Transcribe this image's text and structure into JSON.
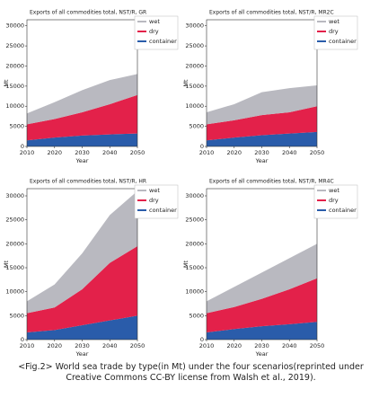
{
  "chart_data": [
    {
      "type": "stacked-area",
      "title": "Exports of all commodities total, NST/R, GR",
      "xlabel": "Year",
      "ylabel": "Mt",
      "x": [
        2010,
        2020,
        2030,
        2040,
        2050
      ],
      "xlim": [
        2010,
        2050
      ],
      "xticks": [
        2010,
        2020,
        2030,
        2040,
        2050
      ],
      "ylim": [
        0,
        31500
      ],
      "yticks": [
        0,
        5000,
        10000,
        15000,
        20000,
        25000,
        30000
      ],
      "legend": "upper right",
      "series": [
        {
          "name": "wet",
          "color": "#b9b9c0",
          "values": [
            2700,
            4200,
            5500,
            6000,
            5200
          ]
        },
        {
          "name": "dry",
          "color": "#e3214a",
          "values": [
            4000,
            4600,
            5800,
            7500,
            9600
          ]
        },
        {
          "name": "container",
          "color": "#2a5caa",
          "values": [
            1500,
            2200,
            2700,
            3000,
            3200
          ]
        }
      ]
    },
    {
      "type": "stacked-area",
      "title": "Exports of all commodities total, NST/R, MR2C",
      "xlabel": "Year",
      "ylabel": "Mt",
      "x": [
        2010,
        2020,
        2030,
        2040,
        2050
      ],
      "xlim": [
        2010,
        2050
      ],
      "xticks": [
        2010,
        2020,
        2030,
        2040,
        2050
      ],
      "ylim": [
        0,
        31500
      ],
      "yticks": [
        0,
        5000,
        10000,
        15000,
        20000,
        25000,
        30000
      ],
      "legend": "upper right",
      "series": [
        {
          "name": "wet",
          "color": "#b9b9c0",
          "values": [
            3000,
            4000,
            5700,
            6000,
            5200
          ]
        },
        {
          "name": "dry",
          "color": "#e3214a",
          "values": [
            4000,
            4300,
            5000,
            5300,
            6400
          ]
        },
        {
          "name": "container",
          "color": "#2a5caa",
          "values": [
            1500,
            2200,
            2800,
            3200,
            3600
          ]
        }
      ]
    },
    {
      "type": "stacked-area",
      "title": "Exports of all commodities total, NST/R, HR",
      "xlabel": "Year",
      "ylabel": "Mt",
      "x": [
        2010,
        2020,
        2030,
        2040,
        2050
      ],
      "xlim": [
        2010,
        2050
      ],
      "xticks": [
        2010,
        2020,
        2030,
        2040,
        2050
      ],
      "ylim": [
        0,
        31500
      ],
      "yticks": [
        0,
        5000,
        10000,
        15000,
        20000,
        25000,
        30000
      ],
      "legend": "upper right",
      "series": [
        {
          "name": "wet",
          "color": "#b9b9c0",
          "values": [
            2500,
            4800,
            7500,
            10000,
            11500
          ]
        },
        {
          "name": "dry",
          "color": "#e3214a",
          "values": [
            4000,
            4700,
            7500,
            12000,
            14500
          ]
        },
        {
          "name": "container",
          "color": "#2a5caa",
          "values": [
            1500,
            2000,
            3000,
            4000,
            5000
          ]
        }
      ]
    },
    {
      "type": "stacked-area",
      "title": "Exports of all commodities total, NST/R, MR4C",
      "xlabel": "Year",
      "ylabel": "Mt",
      "x": [
        2010,
        2020,
        2030,
        2040,
        2050
      ],
      "xlim": [
        2010,
        2050
      ],
      "xticks": [
        2010,
        2020,
        2030,
        2040,
        2050
      ],
      "ylim": [
        0,
        31500
      ],
      "yticks": [
        0,
        5000,
        10000,
        15000,
        20000,
        25000,
        30000
      ],
      "legend": "upper right",
      "series": [
        {
          "name": "wet",
          "color": "#b9b9c0",
          "values": [
            2500,
            4200,
            5500,
            6500,
            7200
          ]
        },
        {
          "name": "dry",
          "color": "#e3214a",
          "values": [
            4000,
            4600,
            5700,
            7300,
            9100
          ]
        },
        {
          "name": "container",
          "color": "#2a5caa",
          "values": [
            1500,
            2200,
            2800,
            3200,
            3700
          ]
        }
      ]
    }
  ],
  "caption": "<Fig.2> World sea trade by type(in Mt) under the four scenarios(reprinted under Creative Commons CC-BY license from Walsh et al., 2019)."
}
